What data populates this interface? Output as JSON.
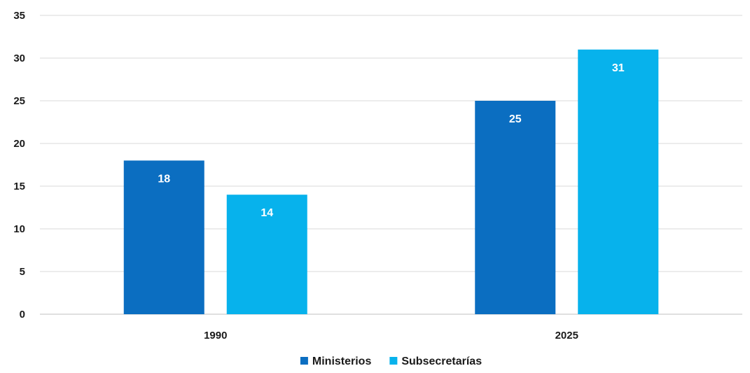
{
  "chart_data": {
    "type": "bar",
    "categories": [
      "1990",
      "2025"
    ],
    "series": [
      {
        "name": "Ministerios",
        "values": [
          18,
          25
        ],
        "color": "#0b6ec1"
      },
      {
        "name": "Subsecretarías",
        "values": [
          14,
          31
        ],
        "color": "#07b2ec"
      }
    ],
    "ylim": [
      0,
      35
    ],
    "yticks": [
      0,
      5,
      10,
      15,
      20,
      25,
      30,
      35
    ],
    "grid": true,
    "legend_position": "bottom",
    "data_labels": true,
    "title": "",
    "xlabel": "",
    "ylabel": ""
  }
}
